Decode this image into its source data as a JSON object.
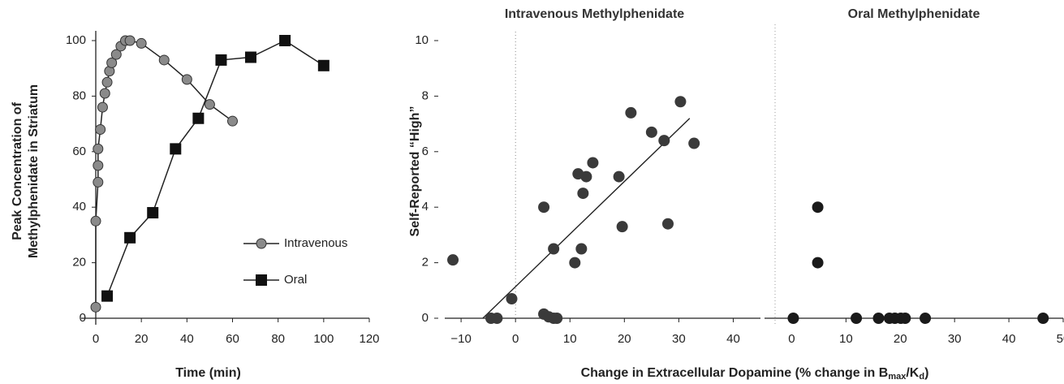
{
  "chart_data": [
    {
      "type": "line",
      "ylabel": [
        "Peak Concentration of",
        "Methylphenidate in Striatum"
      ],
      "xlabel": "Time (min)",
      "xlim": [
        0,
        120
      ],
      "xticks": [
        0,
        20,
        40,
        60,
        80,
        100,
        120
      ],
      "ylim": [
        0,
        100
      ],
      "yticks": [
        0,
        20,
        40,
        60,
        80,
        100
      ],
      "legend": "right",
      "series": [
        {
          "name": "Intravenous",
          "color": "#8a8a8a",
          "marker": "circle",
          "x": [
            0,
            0,
            1,
            1,
            1,
            2,
            3,
            4,
            5,
            6,
            7,
            9,
            11,
            13,
            15,
            20,
            30,
            40,
            50,
            60
          ],
          "values": [
            4,
            35,
            49,
            55,
            61,
            68,
            76,
            81,
            85,
            89,
            92,
            95,
            98,
            100,
            100,
            99,
            93,
            86,
            77,
            71
          ]
        },
        {
          "name": "Oral",
          "color": "#111111",
          "marker": "square",
          "x": [
            5,
            15,
            25,
            35,
            45,
            55,
            68,
            83,
            100
          ],
          "values": [
            8,
            29,
            38,
            61,
            72,
            93,
            94,
            100,
            91
          ]
        }
      ]
    },
    {
      "type": "scatter",
      "title": "Intravenous Methylphenidate",
      "ylabel": "Self-Reported “High”",
      "xlim": [
        -13,
        45
      ],
      "xticks": [
        {
          "value": -10,
          "label": "−10"
        },
        0,
        10,
        20,
        30,
        40
      ],
      "ylim": [
        0,
        10
      ],
      "yticks": [
        0,
        2,
        4,
        6,
        8,
        10
      ],
      "color": "#3a3a3a",
      "x": [
        -11.5,
        -4.5,
        -3.4,
        -0.7,
        5.2,
        5.2,
        6.1,
        7,
        7.6,
        7,
        10.9,
        11.5,
        12.1,
        12.4,
        13,
        14.2,
        19,
        19.6,
        21.2,
        25,
        27.3,
        28,
        30.3,
        32.8
      ],
      "values": [
        2.1,
        0,
        0,
        0.7,
        4.0,
        0.15,
        0.05,
        0,
        0,
        2.5,
        2.0,
        5.2,
        2.5,
        4.5,
        5.1,
        5.6,
        5.1,
        3.3,
        7.4,
        6.7,
        6.4,
        3.4,
        7.8,
        6.3
      ],
      "trendline": {
        "x": [
          -6,
          32
        ],
        "values": [
          0,
          7.2
        ]
      }
    },
    {
      "type": "scatter",
      "title": "Oral Methylphenidate",
      "xlim": [
        -5,
        50
      ],
      "xticks": [
        0,
        10,
        20,
        30,
        40,
        50
      ],
      "ylim": [
        0,
        10
      ],
      "color": "#1a1a1a",
      "x": [
        0.3,
        4.8,
        4.8,
        11.9,
        16,
        18,
        19,
        20.1,
        20.9,
        24.6,
        46.3
      ],
      "values": [
        0,
        2,
        4,
        0,
        0,
        0,
        0,
        0,
        0,
        0,
        0
      ]
    }
  ],
  "shared_xlabel": [
    "Change in Extracellular Dopamine (% change in B",
    "max",
    "/K",
    "d",
    ")"
  ]
}
